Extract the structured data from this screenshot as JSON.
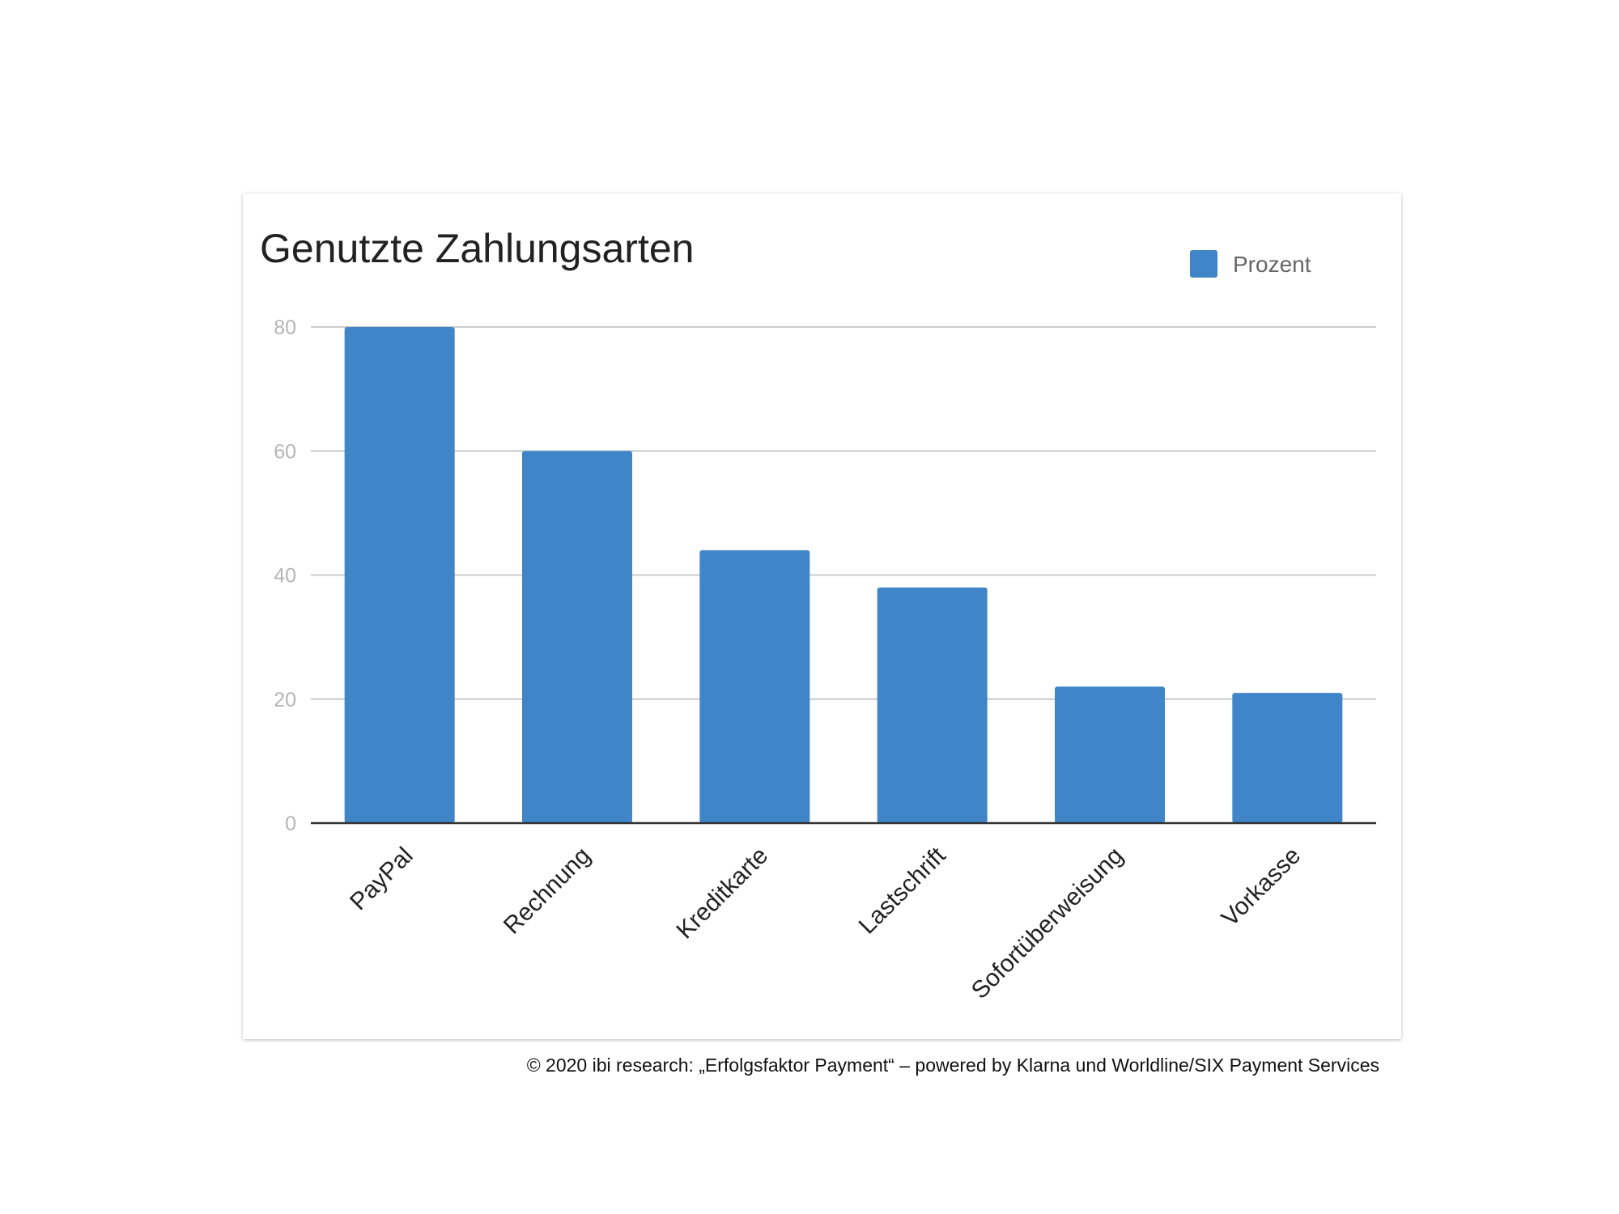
{
  "chart_data": {
    "type": "bar",
    "title": "Genutzte Zahlungsarten",
    "categories": [
      "PayPal",
      "Rechnung",
      "Kreditkarte",
      "Lastschrift",
      "Sofortüberweisung",
      "Vorkasse"
    ],
    "series": [
      {
        "name": "Prozent",
        "values": [
          80,
          60,
          44,
          38,
          22,
          21
        ]
      }
    ],
    "ylim": [
      0,
      80
    ],
    "yticks": [
      "0",
      "20",
      "40",
      "60",
      "80"
    ],
    "grid": true,
    "legend_position": "top-right",
    "bar_color": "#3f85c8"
  },
  "credit": "© 2020 ibi research: „Erfolgsfaktor Payment“ – powered by Klarna und Worldline/SIX Payment Services"
}
